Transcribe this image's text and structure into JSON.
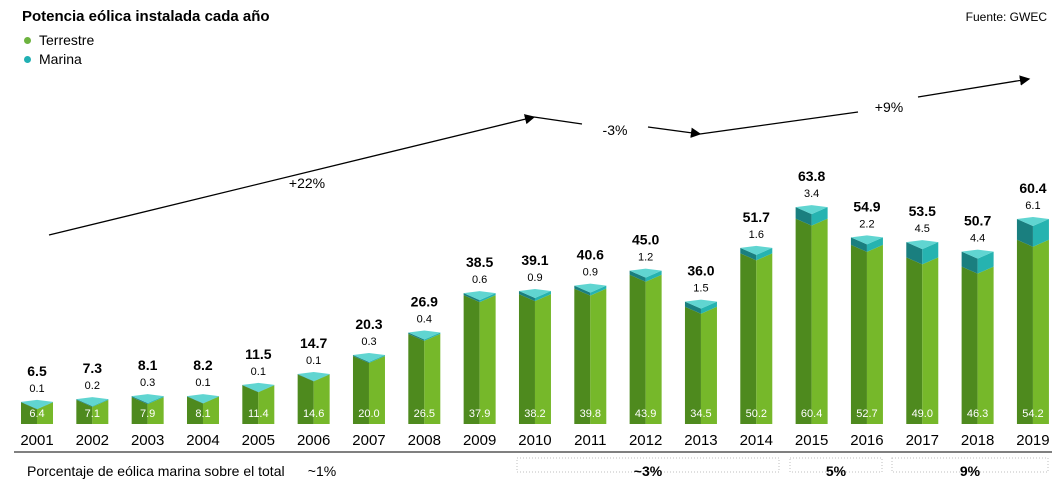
{
  "colors": {
    "onshore_front": "#76B82A",
    "onshore_side": "#4E8A1E",
    "onshore_top": "#9BD255",
    "offshore_front": "#26B3B0",
    "offshore_side": "#1A7F7F",
    "offshore_top": "#4FD0CC",
    "legend_onshore": "#6DB33F",
    "legend_offshore": "#21B0B3",
    "arrow": "#000000",
    "footer_dotted": "#BFBFBF"
  },
  "header": {
    "title": "Potencia eólica instalada cada año",
    "source": "Fuente: GWEC"
  },
  "legend": {
    "onshore": "Terrestre",
    "offshore": "Marina"
  },
  "chart_data": {
    "type": "bar",
    "stacked": true,
    "title": "Potencia eólica instalada cada año",
    "categories": [
      "2001",
      "2002",
      "2003",
      "2004",
      "2005",
      "2006",
      "2007",
      "2008",
      "2009",
      "2010",
      "2011",
      "2012",
      "2013",
      "2014",
      "2015",
      "2016",
      "2017",
      "2018",
      "2019"
    ],
    "series": [
      {
        "name": "Terrestre",
        "values": [
          6.4,
          7.1,
          7.9,
          8.1,
          11.4,
          14.6,
          20.0,
          26.5,
          37.9,
          38.2,
          39.8,
          43.9,
          34.5,
          50.2,
          60.4,
          52.7,
          49.0,
          46.3,
          54.2
        ]
      },
      {
        "name": "Marina",
        "values": [
          0.1,
          0.2,
          0.3,
          0.1,
          0.1,
          0.1,
          0.3,
          0.4,
          0.6,
          0.9,
          0.9,
          1.2,
          1.5,
          1.6,
          3.4,
          2.2,
          4.5,
          4.4,
          6.1
        ]
      }
    ],
    "labels": {
      "onshore": [
        "6.4",
        "7.1",
        "7.9",
        "8.1",
        "11.4",
        "14.6",
        "20.0",
        "26.5",
        "37.9",
        "38.2",
        "39.8",
        "43.9",
        "34.5",
        "50.2",
        "60.4",
        "52.7",
        "49.0",
        "46.3",
        "54.2"
      ],
      "offshore": [
        "0.1",
        "0.2",
        "0.3",
        "0.1",
        "0.1",
        "0.1",
        "0.3",
        "0.4",
        "0.6",
        "0.9",
        "0.9",
        "1.2",
        "1.5",
        "1.6",
        "3.4",
        "2.2",
        "4.5",
        "4.4",
        "6.1"
      ],
      "totals": [
        "6.5",
        "7.3",
        "8.1",
        "8.2",
        "11.5",
        "14.7",
        "20.3",
        "26.9",
        "38.5",
        "39.1",
        "40.6",
        "45.0",
        "36.0",
        "51.7",
        "63.8",
        "54.9",
        "53.5",
        "50.7",
        "60.4"
      ]
    },
    "xlabel": "",
    "ylabel": "",
    "ylim": [
      0,
      70
    ],
    "legend_position": "top-left",
    "growth_annotations": [
      {
        "label": "+22%",
        "from_year": "2001",
        "to_year": "2009"
      },
      {
        "label": "-3%",
        "from_year": "2010",
        "to_year": "2013"
      },
      {
        "label": "+9%",
        "from_year": "2013",
        "to_year": "2019"
      }
    ],
    "footer": {
      "label": "Porcentaje de eólica marina sobre el total",
      "groups": [
        {
          "value": "~1%",
          "from_year": "2001",
          "to_year": "2009"
        },
        {
          "value": "~3%",
          "from_year": "2010",
          "to_year": "2014"
        },
        {
          "value": "5%",
          "from_year": "2015",
          "to_year": "2016"
        },
        {
          "value": "9%",
          "from_year": "2017",
          "to_year": "2019"
        }
      ]
    }
  }
}
